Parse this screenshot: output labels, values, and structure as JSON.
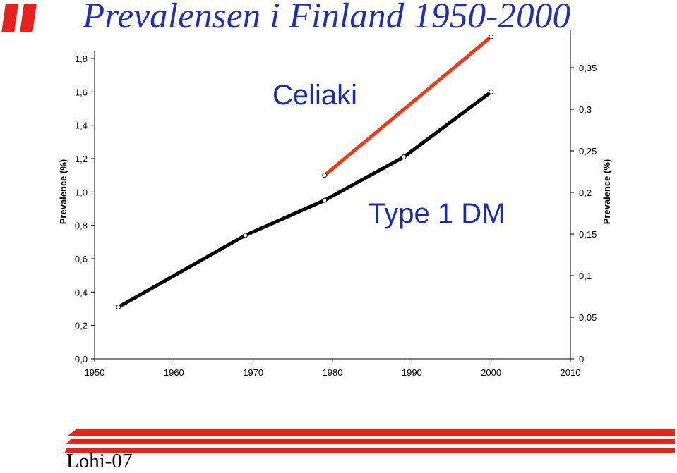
{
  "title": "Prevalensen i Finland 1950-2000",
  "footer": "Lohi-07",
  "colors": {
    "title": "#2230b0",
    "logo": "#e8211b",
    "celiaki": "#ee3a16",
    "dm": "#000000",
    "label": "#1a2cae"
  },
  "chart_data": {
    "type": "line",
    "x_ticks": [
      "1950",
      "1960",
      "1970",
      "1980",
      "1990",
      "2000",
      "2010"
    ],
    "y_left_ticks": [
      "0,0",
      "0,2",
      "0,4",
      "0,6",
      "0,8",
      "1,0",
      "1,2",
      "1,4",
      "1,6",
      "1,8"
    ],
    "y_right_ticks": [
      "0",
      "0,05",
      "0,1",
      "0,15",
      "0,2",
      "0,25",
      "0,3",
      "0,35"
    ],
    "ylabel_left": "Prevalence (%)",
    "ylabel_right": "Prevalence (%)",
    "xlim": [
      1950,
      2010
    ],
    "ylim_left": [
      0,
      1.8
    ],
    "ylim_right": [
      0,
      0.36
    ],
    "grid": false,
    "series": [
      {
        "name": "Celiaki",
        "axis": "left",
        "color": "#ee3a16",
        "x": [
          1979,
          2000
        ],
        "y": [
          1.1,
          1.93
        ]
      },
      {
        "name": "Type 1 DM",
        "axis": "left",
        "color": "#000000",
        "x": [
          1953,
          1969,
          1979,
          1989,
          2000
        ],
        "y": [
          0.31,
          0.74,
          0.95,
          1.21,
          1.6
        ]
      }
    ]
  }
}
